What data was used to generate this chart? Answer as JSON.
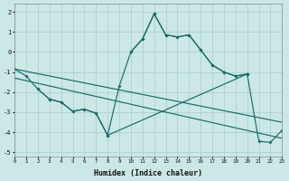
{
  "xlabel": "Humidex (Indice chaleur)",
  "bg": "#cce8e6",
  "grid_color": "#a8cccb",
  "lc": "#1a6b68",
  "xlim": [
    0,
    23
  ],
  "ylim": [
    -5.2,
    2.4
  ],
  "yticks": [
    -5,
    -4,
    -3,
    -2,
    -1,
    0,
    1,
    2
  ],
  "xticks": [
    0,
    1,
    2,
    3,
    4,
    5,
    6,
    7,
    8,
    9,
    10,
    11,
    12,
    13,
    14,
    15,
    16,
    17,
    18,
    19,
    20,
    21,
    22,
    23
  ],
  "series": [
    {
      "x": [
        10,
        11,
        12,
        13,
        14,
        15,
        16,
        17,
        18,
        19,
        20
      ],
      "y": [
        0.0,
        0.65,
        1.9,
        0.85,
        0.75,
        0.85,
        0.1,
        -0.65,
        -1.0,
        -1.2,
        -1.1
      ],
      "marker": true
    },
    {
      "x": [
        0,
        1,
        2,
        3,
        4,
        5,
        6,
        7,
        8,
        9,
        10,
        11,
        12,
        13,
        14,
        15,
        16,
        17,
        18,
        19,
        20
      ],
      "y": [
        -0.85,
        -1.2,
        -1.85,
        -2.35,
        -2.5,
        -2.95,
        -2.85,
        -3.05,
        -4.15,
        -1.7,
        0.0,
        0.65,
        1.9,
        0.85,
        0.75,
        0.85,
        0.1,
        -0.65,
        -1.0,
        -1.2,
        -1.1
      ],
      "marker": true
    },
    {
      "x": [
        2,
        3,
        4,
        5,
        6,
        7,
        8,
        20,
        21,
        22,
        23
      ],
      "y": [
        -1.85,
        -2.35,
        -2.5,
        -2.95,
        -2.85,
        -3.05,
        -4.15,
        -1.1,
        -4.45,
        -4.5,
        -3.9
      ],
      "marker": true
    },
    {
      "x": [
        0,
        23
      ],
      "y": [
        -0.85,
        -3.5
      ],
      "marker": false
    },
    {
      "x": [
        0,
        23
      ],
      "y": [
        -1.3,
        -4.3
      ],
      "marker": false
    }
  ]
}
